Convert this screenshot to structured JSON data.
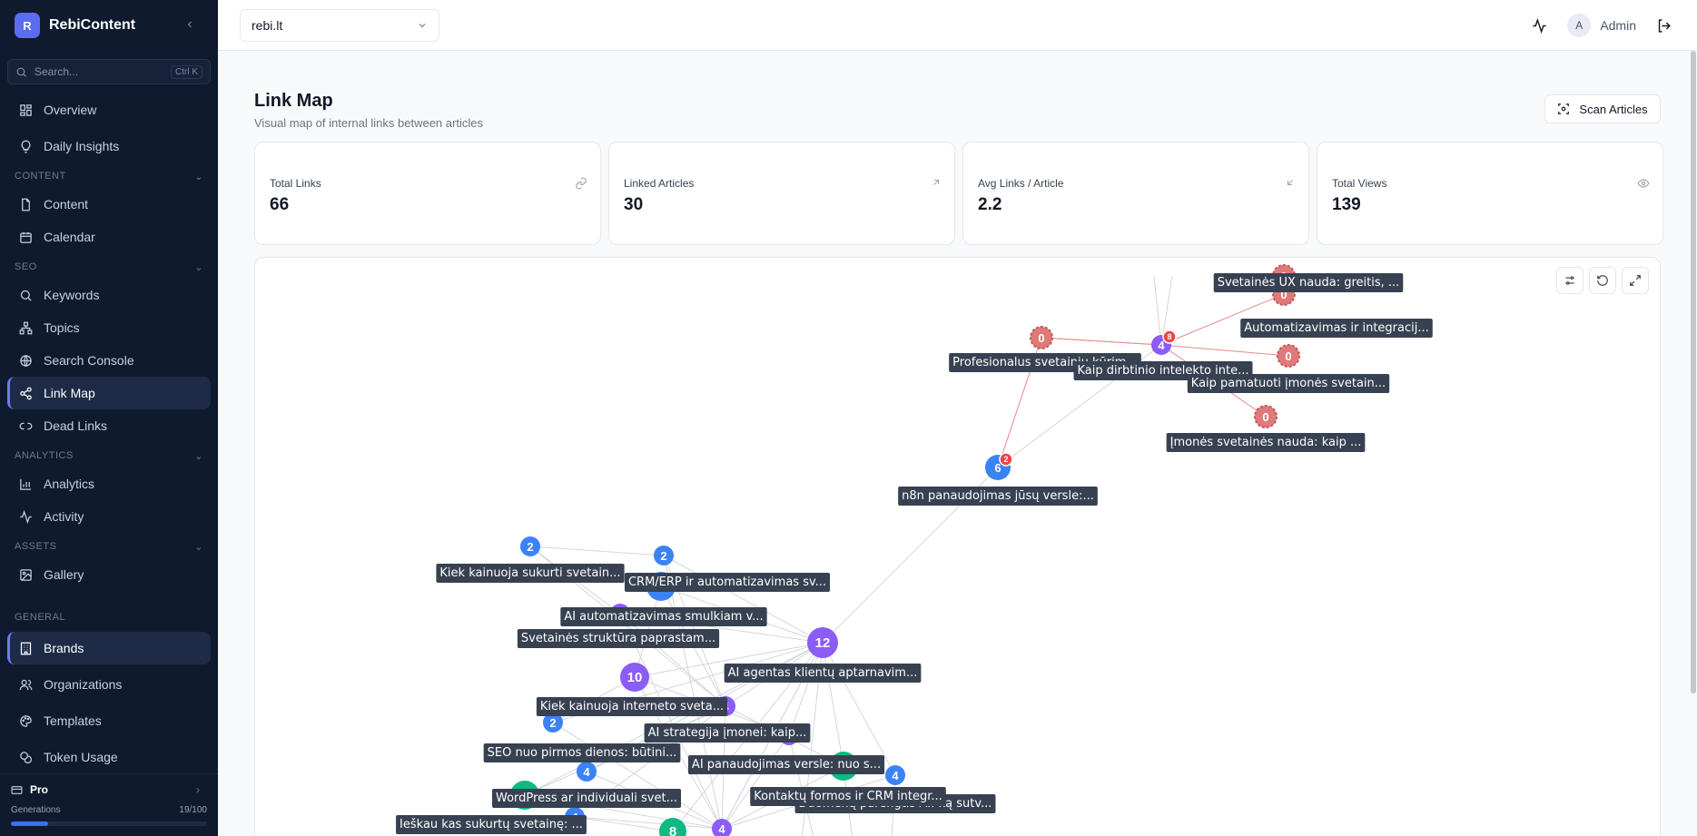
{
  "app": {
    "name": "RebiContent",
    "logo_letter": "R",
    "accent": "#5b6cf0"
  },
  "search": {
    "placeholder": "Search...",
    "shortcut": "Ctrl K"
  },
  "nav": {
    "overview": "Overview",
    "daily_insights": "Daily Insights",
    "section_content": "CONTENT",
    "content": "Content",
    "calendar": "Calendar",
    "section_seo": "SEO",
    "keywords": "Keywords",
    "topics": "Topics",
    "search_console": "Search Console",
    "link_map": "Link Map",
    "dead_links": "Dead Links",
    "section_analytics": "ANALYTICS",
    "analytics": "Analytics",
    "activity": "Activity",
    "section_assets": "ASSETS",
    "gallery": "Gallery",
    "section_general": "GENERAL",
    "brands": "Brands",
    "organizations": "Organizations",
    "templates": "Templates",
    "token_usage": "Token Usage"
  },
  "plan": {
    "name": "Pro",
    "generations_label": "Generations",
    "generations_used": 19,
    "generations_total": 100,
    "generations_text": "19/100"
  },
  "topbar": {
    "site": "rebi.lt",
    "user_initial": "A",
    "user_name": "Admin"
  },
  "page": {
    "title": "Link Map",
    "subtitle": "Visual map of internal links between articles",
    "scan_button": "Scan Articles"
  },
  "stats": [
    {
      "label": "Total Links",
      "value": "66",
      "icon": "link-icon"
    },
    {
      "label": "Linked Articles",
      "value": "30",
      "icon": "arrow-up-right-icon"
    },
    {
      "label": "Avg Links / Article",
      "value": "2.2",
      "icon": "arrow-down-left-icon"
    },
    {
      "label": "Total Views",
      "value": "139",
      "icon": "eye-icon"
    }
  ],
  "colors": {
    "blue": "#3b82f6",
    "purple": "#8b5cf6",
    "green": "#10b981",
    "red": "#e07a7a",
    "badge": "#ef4444",
    "label_bg": "#374151"
  },
  "graph": {
    "nodes": [
      {
        "id": "n1",
        "count": "0",
        "kind": "red",
        "label": "Svetainės UX nauda: greitis, ..."
      },
      {
        "id": "n2",
        "count": "0",
        "kind": "red",
        "label": "Automatizavimas ir integracij..."
      },
      {
        "id": "n3",
        "count": "0",
        "kind": "red",
        "label": "Profesionalus svetainių kūrim..."
      },
      {
        "id": "n4",
        "count": "4",
        "kind": "purple",
        "badge": "8",
        "label": "Kaip dirbtinio intelekto inte..."
      },
      {
        "id": "n5",
        "count": "0",
        "kind": "red",
        "label": "Kaip pamatuoti įmonės svetain..."
      },
      {
        "id": "n6",
        "count": "0",
        "kind": "red",
        "label": "Įmonės svetainės nauda: kaip ..."
      },
      {
        "id": "n7",
        "count": "6",
        "kind": "blue",
        "badge": "2",
        "label": "n8n panaudojimas jūsų versle:..."
      },
      {
        "id": "n8",
        "count": "2",
        "kind": "blue",
        "label": "Kiek kainuoja sukurti svetain..."
      },
      {
        "id": "n9",
        "count": "2",
        "kind": "blue",
        "label": "CRM/ERP ir automatizavimas sv..."
      },
      {
        "id": "n10",
        "count": "",
        "kind": "blue",
        "label": ""
      },
      {
        "id": "n11",
        "count": "2",
        "kind": "purple",
        "label": "AI automatizavimas smulkiam v..."
      },
      {
        "id": "n12",
        "count": "",
        "kind": "none",
        "label": "Svetainės struktūra paprastam..."
      },
      {
        "id": "n13",
        "count": "12",
        "kind": "purple",
        "label": "AI agentas klientų aptarnavim..."
      },
      {
        "id": "n14",
        "count": "10",
        "kind": "purple",
        "label": ""
      },
      {
        "id": "n15",
        "count": "4",
        "kind": "purple",
        "label": "Kiek kainuoja interneto sveta..."
      },
      {
        "id": "n16",
        "count": "2",
        "kind": "blue",
        "label": ""
      },
      {
        "id": "n17",
        "count": "2",
        "kind": "purple",
        "label": "AI strategija įmonei: kaip..."
      },
      {
        "id": "n18",
        "count": "",
        "kind": "none",
        "label": "SEO nuo pirmos dienos: būtini..."
      },
      {
        "id": "n19",
        "count": "4",
        "kind": "blue",
        "label": ""
      },
      {
        "id": "n20",
        "count": "",
        "kind": "green",
        "label": "AI panaudojimas versle: nuo s..."
      },
      {
        "id": "n21",
        "count": "4",
        "kind": "blue",
        "label": "Duomenų parengtis AI: ką sutv..."
      },
      {
        "id": "n22",
        "count": "",
        "kind": "none",
        "label": "Kontaktų formos ir CRM integr..."
      },
      {
        "id": "n23",
        "count": "",
        "kind": "green",
        "label": "WordPress ar individuali svet..."
      },
      {
        "id": "n24",
        "count": "4",
        "kind": "blue",
        "label": "Ieškau kas sukurtų svetainę: ..."
      },
      {
        "id": "n25",
        "count": "8",
        "kind": "green",
        "label": ""
      },
      {
        "id": "n26",
        "count": "4",
        "kind": "purple",
        "label": ""
      }
    ]
  }
}
